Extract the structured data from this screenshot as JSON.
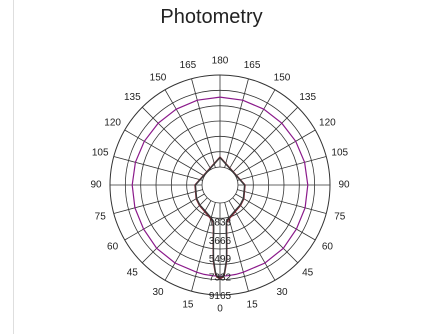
{
  "chart_data": {
    "type": "polar",
    "title": "Photometry",
    "angle_ticks": [
      "0",
      "15",
      "30",
      "45",
      "60",
      "75",
      "90",
      "105",
      "120",
      "135",
      "150",
      "165",
      "180",
      "165",
      "150",
      "135",
      "120",
      "105",
      "90",
      "75",
      "60",
      "45",
      "30",
      "15"
    ],
    "radial_ticks": [
      1833,
      3666,
      5499,
      7332,
      9165
    ],
    "radial_tick_labels": [
      "1833",
      "3666",
      "5499",
      "7332",
      "9165"
    ],
    "r_max": 9165,
    "series": [
      {
        "color": "#8b1a8b",
        "angles": [
          0,
          5,
          10,
          15,
          30,
          45,
          60,
          75,
          90,
          105,
          120,
          135,
          150,
          165,
          180
        ],
        "values": [
          7300,
          7280,
          7250,
          7200,
          7180,
          7120,
          7000,
          6980,
          6950,
          6930,
          6920,
          6920,
          6930,
          6950,
          6960
        ]
      },
      {
        "color": "#8b1d2e",
        "angles": [
          0,
          1,
          2,
          3,
          4,
          5,
          6,
          7,
          8,
          10,
          15,
          30,
          45,
          60,
          90,
          180
        ],
        "values": [
          7500,
          7460,
          7380,
          7050,
          6400,
          5800,
          4650,
          3650,
          2900,
          2000,
          1700,
          1250,
          1100,
          950,
          700,
          1000
        ]
      },
      {
        "color": "#3a3a3a",
        "angles": [
          0,
          1,
          2,
          3,
          4,
          5,
          6,
          7,
          8,
          10,
          15,
          30,
          45,
          60,
          90,
          180
        ],
        "values": [
          7380,
          7340,
          7260,
          6900,
          6250,
          5650,
          4500,
          3500,
          2750,
          1900,
          1600,
          1180,
          1040,
          900,
          660,
          950
        ]
      }
    ]
  }
}
